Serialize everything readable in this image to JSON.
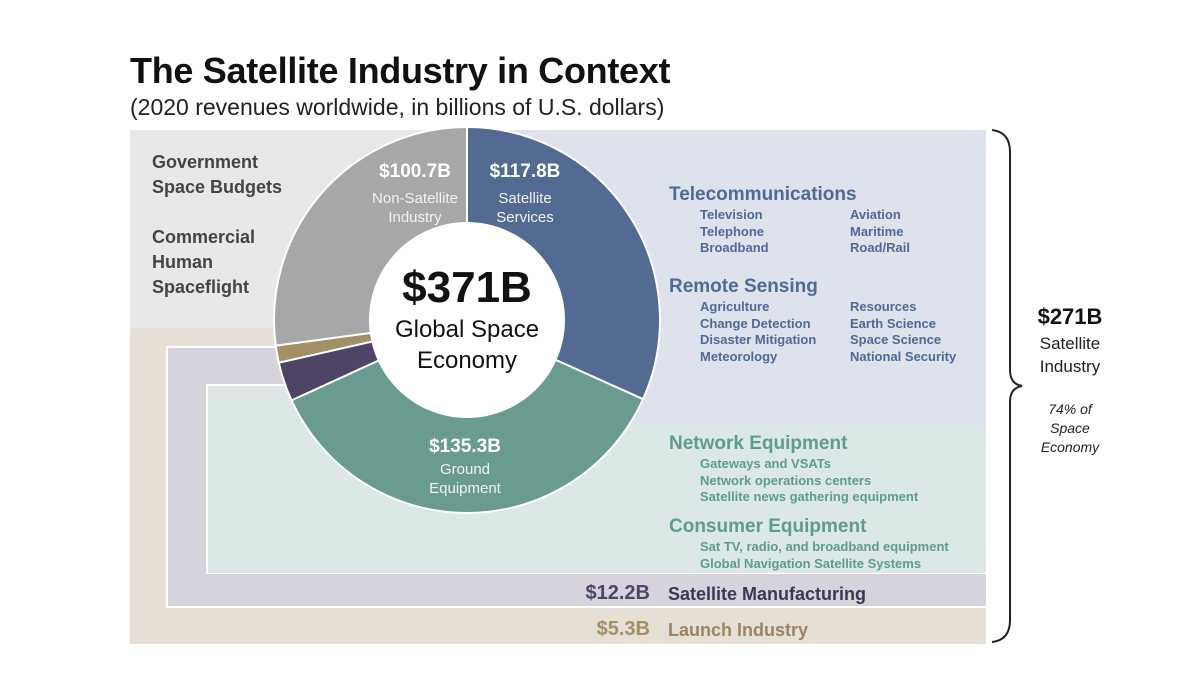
{
  "chart_data": {
    "type": "pie",
    "title": "The Satellite Industry in Context",
    "subtitle": "(2020 revenues worldwide, in billions of U.S. dollars)",
    "center": {
      "total": "$371B",
      "label_line1": "Global Space",
      "label_line2": "Economy"
    },
    "slices": [
      {
        "name": "Satellite Services",
        "value": 117.8,
        "value_label": "$117.8B",
        "label_lines": [
          "Satellite",
          "Services"
        ],
        "color": "#536a92"
      },
      {
        "name": "Ground Equipment",
        "value": 135.3,
        "value_label": "$135.3B",
        "label_lines": [
          "Ground",
          "Equipment"
        ],
        "color": "#6a9b90"
      },
      {
        "name": "Satellite Manufacturing",
        "value": 12.2,
        "value_label": "$12.2B",
        "label_lines": [],
        "color": "#4e4566"
      },
      {
        "name": "Launch Industry",
        "value": 5.3,
        "value_label": "$5.3B",
        "label_lines": [],
        "color": "#a48f66"
      },
      {
        "name": "Non-Satellite Industry",
        "value": 100.7,
        "value_label": "$100.7B",
        "label_lines": [
          "Non-Satellite",
          "Industry"
        ],
        "color": "#a7a7a7"
      }
    ],
    "left_labels": {
      "government": [
        "Government",
        "Space Budgets"
      ],
      "commercial": [
        "Commercial",
        "Human",
        "Spaceflight"
      ]
    },
    "categories": {
      "telecom": {
        "title": "Telecommunications",
        "col1": [
          "Television",
          "Telephone",
          "Broadband"
        ],
        "col2": [
          "Aviation",
          "Maritime",
          "Road/Rail"
        ]
      },
      "remote": {
        "title": "Remote Sensing",
        "col1": [
          "Agriculture",
          "Change Detection",
          "Disaster Mitigation",
          "Meteorology"
        ],
        "col2": [
          "Resources",
          "Earth Science",
          "Space Science",
          "National Security"
        ]
      },
      "network": {
        "title": "Network Equipment",
        "items": [
          "Gateways and VSATs",
          "Network operations centers",
          "Satellite news gathering equipment"
        ]
      },
      "consumer": {
        "title": "Consumer Equipment",
        "items": [
          "Sat TV, radio, and broadband equipment",
          "Global Navigation Satellite Systems"
        ]
      }
    },
    "rows": {
      "manufacturing": {
        "value": "$12.2B",
        "label": "Satellite Manufacturing",
        "color": "#4e4566"
      },
      "launch": {
        "value": "$5.3B",
        "label": "Launch Industry",
        "color": "#a48f66"
      }
    },
    "bracket": {
      "total": "$271B",
      "label_line1": "Satellite",
      "label_line2": "Industry",
      "note_lines": [
        "74% of",
        "Space",
        "Economy"
      ]
    },
    "colors": {
      "government_band": "#e8e8e8",
      "services_band": "#dde2ec",
      "ground_band": "#dbe8e5",
      "manufacturing_band": "#d6d3dc",
      "launch_band": "#e6dfd5"
    }
  }
}
